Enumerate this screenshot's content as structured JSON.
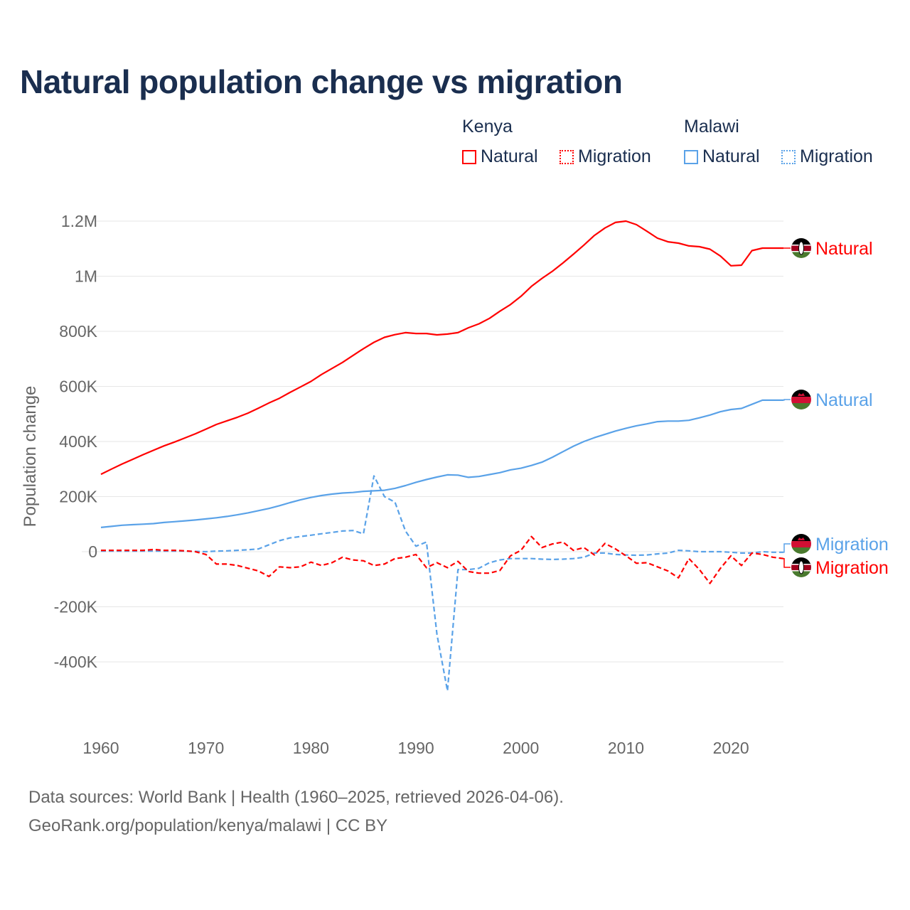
{
  "title": "Natural population change vs migration",
  "legend": {
    "groups": [
      {
        "name": "Kenya",
        "items": [
          {
            "label": "Natural",
            "style": "solid",
            "color": "#ff0000"
          },
          {
            "label": "Migration",
            "style": "dotted",
            "color": "#ff0000"
          }
        ]
      },
      {
        "name": "Malawi",
        "items": [
          {
            "label": "Natural",
            "style": "solid",
            "color": "#5aa2e8"
          },
          {
            "label": "Migration",
            "style": "dotted",
            "color": "#5aa2e8"
          }
        ]
      }
    ]
  },
  "footer": {
    "line1": "Data sources: World Bank | Health (1960–2025, retrieved 2026-04-06).",
    "line2": "GeoRank.org/population/kenya/malawi | CC BY"
  },
  "chart_data": {
    "type": "line",
    "title": "Natural population change vs migration",
    "xlabel": "",
    "ylabel": "Population change",
    "xlim": [
      1960,
      2025
    ],
    "ylim": [
      -500000,
      1200000
    ],
    "x_ticks": [
      1960,
      1970,
      1980,
      1990,
      2000,
      2010,
      2020
    ],
    "x_tick_labels": [
      "1960",
      "1970",
      "1980",
      "1990",
      "2000",
      "2010",
      "2020"
    ],
    "y_ticks": [
      -400000,
      -200000,
      0,
      200000,
      400000,
      600000,
      800000,
      1000000,
      1200000
    ],
    "y_tick_labels": [
      "-400K",
      "-200K",
      "0",
      "200K",
      "400K",
      "600K",
      "800K",
      "1M",
      "1.2M"
    ],
    "grid": true,
    "legend_position": "top-right",
    "x_start": 1960,
    "units": "thousands",
    "series": [
      {
        "name": "Kenya Natural",
        "end_label": "Natural",
        "country": "Kenya",
        "color": "#ff0000",
        "dash": false,
        "values": [
          281,
          300,
          318,
          335,
          352,
          368,
          384,
          398,
          413,
          428,
          445,
          462,
          475,
          488,
          503,
          521,
          540,
          557,
          578,
          598,
          618,
          643,
          665,
          687,
          712,
          737,
          760,
          778,
          788,
          795,
          792,
          792,
          787,
          790,
          795,
          813,
          827,
          847,
          873,
          897,
          927,
          963,
          992,
          1018,
          1048,
          1080,
          1113,
          1148,
          1175,
          1195,
          1200,
          1187,
          1163,
          1138,
          1125,
          1120,
          1110,
          1107,
          1098,
          1073,
          1038,
          1040,
          1093,
          1102,
          1102,
          1102
        ]
      },
      {
        "name": "Malawi Natural",
        "end_label": "Natural",
        "country": "Malawi",
        "color": "#5aa2e8",
        "dash": false,
        "values": [
          88,
          92,
          96,
          98,
          100,
          102,
          106,
          109,
          112,
          115,
          119,
          123,
          128,
          134,
          141,
          149,
          157,
          167,
          178,
          188,
          197,
          204,
          209,
          213,
          215,
          219,
          221,
          223,
          230,
          240,
          252,
          262,
          271,
          279,
          278,
          270,
          273,
          280,
          287,
          297,
          303,
          313,
          325,
          343,
          363,
          383,
          400,
          414,
          426,
          438,
          448,
          457,
          464,
          472,
          474,
          474,
          477,
          486,
          496,
          508,
          516,
          520,
          535,
          550,
          550,
          550
        ]
      },
      {
        "name": "Malawi Migration",
        "end_label": "Migration",
        "country": "Malawi",
        "color": "#5aa2e8",
        "dash": true,
        "values": [
          2,
          2,
          2,
          2,
          2,
          2,
          2,
          2,
          2,
          1,
          0,
          2,
          3,
          5,
          7,
          10,
          25,
          40,
          50,
          55,
          60,
          65,
          70,
          75,
          77,
          65,
          275,
          200,
          180,
          75,
          20,
          35,
          -300,
          -505,
          -65,
          -65,
          -60,
          -40,
          -30,
          -25,
          -25,
          -25,
          -27,
          -28,
          -27,
          -25,
          -20,
          -5,
          -5,
          -10,
          -12,
          -13,
          -12,
          -8,
          -5,
          5,
          3,
          0,
          0,
          0,
          -2,
          -5,
          -5,
          0,
          -2,
          -2
        ]
      },
      {
        "name": "Kenya Migration",
        "end_label": "Migration",
        "country": "Kenya",
        "color": "#ff0000",
        "dash": true,
        "values": [
          5,
          5,
          5,
          5,
          5,
          8,
          5,
          5,
          3,
          0,
          -10,
          -45,
          -45,
          -50,
          -60,
          -70,
          -90,
          -55,
          -58,
          -55,
          -38,
          -50,
          -40,
          -20,
          -30,
          -33,
          -50,
          -45,
          -25,
          -20,
          -10,
          -58,
          -40,
          -58,
          -35,
          -72,
          -78,
          -78,
          -68,
          -15,
          5,
          55,
          15,
          28,
          35,
          5,
          15,
          -12,
          30,
          10,
          -15,
          -42,
          -40,
          -55,
          -70,
          -95,
          -25,
          -65,
          -115,
          -60,
          -15,
          -50,
          -5,
          -10,
          -20,
          -25
        ]
      }
    ]
  }
}
